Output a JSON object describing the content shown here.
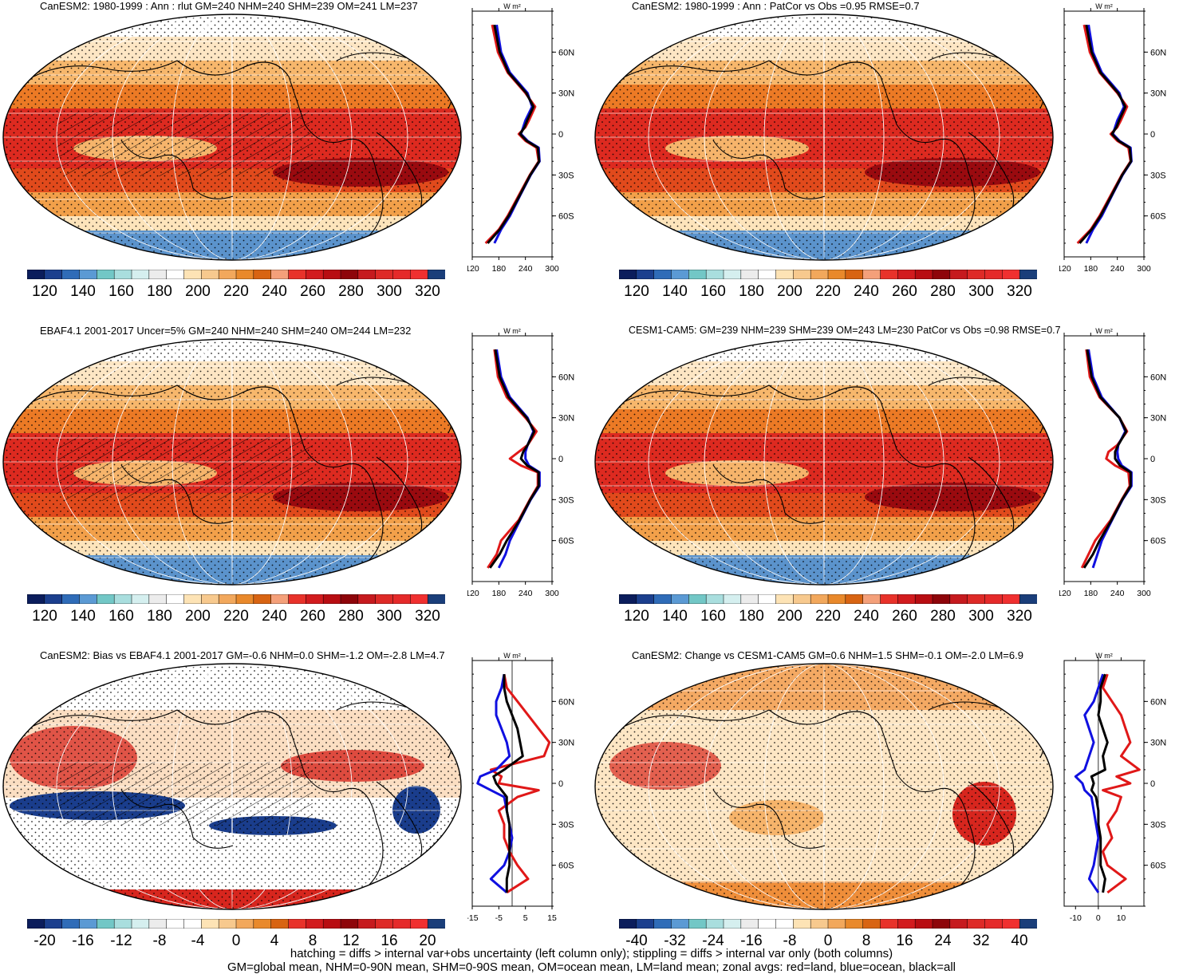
{
  "colors": {
    "abs_scale": [
      "#0b1d5c",
      "#1b3f8e",
      "#2f6cb8",
      "#5b9ad4",
      "#72c7c6",
      "#a9dede",
      "#d5efef",
      "#ececec",
      "#ffffff",
      "#fde3b5",
      "#f7c98e",
      "#f2a85c",
      "#e9892b",
      "#d86412",
      "#f4a07a",
      "#e8322a",
      "#d21b1e",
      "#b80d12",
      "#8e050a",
      "#c61a1e",
      "#de2a27",
      "#e52a2a",
      "#f03030",
      "#1a3e7a"
    ],
    "land": "#e01818",
    "ocean": "#1010e0",
    "all": "#000000"
  },
  "panels": [
    {
      "id": "p1",
      "title": "CanESM2: 1980-1999 : Ann : rlut GM=240 NHM=240 SHM=239 OM=241 LM=237",
      "profile_units": "W m²",
      "profile_xticks": [
        "120",
        "180",
        "240",
        "300"
      ],
      "profile_yticks": [
        "60N",
        "30N",
        "0",
        "30S",
        "60S"
      ],
      "colorbar_labels": [
        "120",
        "140",
        "160",
        "180",
        "200",
        "220",
        "240",
        "260",
        "280",
        "300",
        "320"
      ],
      "hatched": true
    },
    {
      "id": "p2",
      "title": "CanESM2: 1980-1999 : Ann : PatCor vs Obs =0.95 RMSE=0.7",
      "profile_units": "W m²",
      "profile_xticks": [
        "120",
        "180",
        "240",
        "300"
      ],
      "profile_yticks": [
        "60N",
        "30N",
        "0",
        "30S",
        "60S"
      ],
      "colorbar_labels": [
        "120",
        "140",
        "160",
        "180",
        "200",
        "220",
        "240",
        "260",
        "280",
        "300",
        "320"
      ],
      "hatched": false
    },
    {
      "id": "p3",
      "title": "EBAF4.1 2001-2017 Uncer=5% GM=240 NHM=240 SHM=240 OM=244 LM=232",
      "profile_units": "W m²",
      "profile_xticks": [
        "120",
        "180",
        "240",
        "300"
      ],
      "profile_yticks": [
        "60N",
        "30N",
        "0",
        "30S",
        "60S"
      ],
      "colorbar_labels": [
        "120",
        "140",
        "160",
        "180",
        "200",
        "220",
        "240",
        "260",
        "280",
        "300",
        "320"
      ],
      "hatched": true
    },
    {
      "id": "p4",
      "title": "CESM1-CAM5: GM=239 NHM=239 SHM=239 OM=243 LM=230 PatCor vs Obs =0.98 RMSE=0.7",
      "profile_units": "W m²",
      "profile_xticks": [
        "120",
        "180",
        "240",
        "300"
      ],
      "profile_yticks": [
        "60N",
        "30N",
        "0",
        "30S",
        "60S"
      ],
      "colorbar_labels": [
        "120",
        "140",
        "160",
        "180",
        "200",
        "220",
        "240",
        "260",
        "280",
        "300",
        "320"
      ],
      "hatched": false
    },
    {
      "id": "p5",
      "title": "CanESM2: Bias vs EBAF4.1 2001-2017 GM=-0.6 NHM=0.0 SHM=-1.2 OM=-2.8 LM=4.7",
      "profile_units": "W m²",
      "profile_xticks": [
        "-15",
        "-5",
        "5",
        "15"
      ],
      "profile_yticks": [
        "60N",
        "30N",
        "0",
        "30S",
        "60S"
      ],
      "colorbar_labels": [
        "-20",
        "-16",
        "-12",
        "-8",
        "-4",
        "0",
        "4",
        "8",
        "12",
        "16",
        "20"
      ],
      "hatched": true
    },
    {
      "id": "p6",
      "title": "CanESM2: Change vs CESM1-CAM5 GM=0.6 NHM=1.5 SHM=-0.1 OM=-2.0 LM=6.9",
      "profile_units": "W m²",
      "profile_xticks": [
        "-10",
        "0",
        "10"
      ],
      "profile_yticks": [
        "60N",
        "30N",
        "0",
        "30S",
        "60S"
      ],
      "colorbar_labels": [
        "-40",
        "-32",
        "-24",
        "-16",
        "-8",
        "0",
        "8",
        "16",
        "24",
        "32",
        "40"
      ],
      "hatched": false
    }
  ],
  "chart_data": [
    {
      "type": "line",
      "panel": "CanESM2 rlut zonal average",
      "y": [
        80,
        60,
        45,
        30,
        20,
        10,
        5,
        0,
        -5,
        -10,
        -20,
        -30,
        -45,
        -60,
        -70,
        -80
      ],
      "series": [
        {
          "name": "red=land",
          "values": [
            165,
            178,
            200,
            240,
            262,
            248,
            240,
            225,
            240,
            265,
            270,
            250,
            225,
            200,
            180,
            150
          ]
        },
        {
          "name": "blue=ocean",
          "values": [
            175,
            185,
            205,
            245,
            255,
            240,
            235,
            230,
            245,
            270,
            272,
            252,
            228,
            205,
            185,
            170
          ]
        },
        {
          "name": "black=all",
          "values": [
            170,
            182,
            202,
            242,
            258,
            244,
            238,
            228,
            243,
            268,
            271,
            251,
            227,
            202,
            182,
            155
          ]
        }
      ],
      "xlim": [
        120,
        300
      ],
      "ylim": [
        -90,
        90
      ]
    },
    {
      "type": "line",
      "panel": "CanESM2 PatCor zonal average",
      "y": [
        80,
        60,
        45,
        30,
        20,
        10,
        5,
        0,
        -5,
        -10,
        -20,
        -30,
        -45,
        -60,
        -70,
        -80
      ],
      "series": [
        {
          "name": "red=land",
          "values": [
            165,
            178,
            200,
            240,
            262,
            248,
            240,
            225,
            240,
            265,
            270,
            250,
            225,
            200,
            180,
            150
          ]
        },
        {
          "name": "blue=ocean",
          "values": [
            175,
            185,
            205,
            245,
            255,
            240,
            235,
            230,
            245,
            270,
            272,
            252,
            228,
            205,
            185,
            170
          ]
        },
        {
          "name": "black=all",
          "values": [
            170,
            182,
            202,
            242,
            258,
            244,
            238,
            228,
            243,
            268,
            271,
            251,
            227,
            202,
            182,
            155
          ]
        }
      ],
      "xlim": [
        120,
        300
      ],
      "ylim": [
        -90,
        90
      ]
    },
    {
      "type": "line",
      "panel": "EBAF4.1 zonal average",
      "y": [
        80,
        60,
        45,
        30,
        20,
        10,
        5,
        0,
        -5,
        -10,
        -20,
        -30,
        -45,
        -60,
        -70,
        -80
      ],
      "series": [
        {
          "name": "red=land",
          "values": [
            170,
            178,
            198,
            240,
            265,
            245,
            225,
            205,
            230,
            268,
            268,
            250,
            225,
            185,
            175,
            155
          ]
        },
        {
          "name": "blue=ocean",
          "values": [
            175,
            185,
            205,
            245,
            258,
            245,
            240,
            240,
            248,
            272,
            272,
            252,
            228,
            205,
            195,
            180
          ]
        },
        {
          "name": "black=all",
          "values": [
            172,
            182,
            202,
            243,
            260,
            245,
            235,
            230,
            244,
            270,
            270,
            251,
            227,
            198,
            182,
            160
          ]
        }
      ],
      "xlim": [
        120,
        300
      ],
      "ylim": [
        -90,
        90
      ]
    },
    {
      "type": "line",
      "panel": "CESM1-CAM5 zonal average",
      "y": [
        80,
        60,
        45,
        30,
        20,
        10,
        5,
        0,
        -5,
        -10,
        -20,
        -30,
        -45,
        -60,
        -70,
        -80
      ],
      "series": [
        {
          "name": "red=land",
          "values": [
            170,
            178,
            200,
            245,
            262,
            240,
            220,
            215,
            235,
            265,
            268,
            250,
            225,
            190,
            175,
            160
          ]
        },
        {
          "name": "blue=ocean",
          "values": [
            175,
            185,
            205,
            245,
            258,
            242,
            240,
            242,
            250,
            272,
            272,
            252,
            228,
            205,
            195,
            185
          ]
        },
        {
          "name": "black=all",
          "values": [
            172,
            182,
            202,
            245,
            260,
            242,
            235,
            235,
            246,
            270,
            270,
            251,
            227,
            200,
            185,
            165
          ]
        }
      ],
      "xlim": [
        120,
        300
      ],
      "ylim": [
        -90,
        90
      ]
    },
    {
      "type": "line",
      "panel": "CanESM2 bias zonal average",
      "y": [
        80,
        70,
        60,
        50,
        40,
        30,
        20,
        10,
        5,
        0,
        -5,
        -10,
        -20,
        -30,
        -40,
        -50,
        -60,
        -70,
        -80
      ],
      "series": [
        {
          "name": "red=land",
          "values": [
            -3,
            -2,
            2,
            6,
            10,
            14,
            12,
            -8,
            -4,
            -5,
            10,
            2,
            -5,
            -3,
            -3,
            -1,
            2,
            6,
            -2
          ]
        },
        {
          "name": "blue=ocean",
          "values": [
            -3,
            -4,
            -6,
            -6,
            -4,
            -2,
            -1,
            -6,
            -12,
            -13,
            -8,
            -3,
            -2,
            -1,
            0,
            -1,
            -3,
            -8,
            -2
          ]
        },
        {
          "name": "black=all",
          "values": [
            -3,
            -3,
            -2,
            0,
            2,
            3,
            4,
            -3,
            -7,
            -6,
            -4,
            -2,
            -2,
            -1,
            -1,
            -1,
            -1,
            -2,
            -2
          ]
        }
      ],
      "xlim": [
        -15,
        15
      ],
      "ylim": [
        -90,
        90
      ]
    },
    {
      "type": "line",
      "panel": "CanESM2 change vs CESM1-CAM5 zonal average",
      "y": [
        80,
        70,
        60,
        50,
        40,
        30,
        20,
        10,
        5,
        0,
        -5,
        -10,
        -20,
        -30,
        -40,
        -50,
        -60,
        -70,
        -80
      ],
      "series": [
        {
          "name": "red=land",
          "values": [
            4,
            2,
            6,
            10,
            12,
            14,
            10,
            18,
            8,
            14,
            2,
            10,
            8,
            4,
            6,
            2,
            4,
            12,
            4
          ]
        },
        {
          "name": "blue=ocean",
          "values": [
            2,
            0,
            -2,
            -6,
            -4,
            -2,
            -4,
            -6,
            -10,
            -7,
            -6,
            -3,
            -2,
            -1,
            0,
            -1,
            -2,
            -4,
            0
          ]
        },
        {
          "name": "black=all",
          "values": [
            3,
            1,
            1,
            0,
            2,
            4,
            2,
            3,
            -3,
            -2,
            -3,
            -1,
            0,
            0,
            1,
            1,
            1,
            3,
            2
          ]
        }
      ],
      "xlim": [
        -15,
        20
      ],
      "ylim": [
        -90,
        90
      ]
    }
  ],
  "footer": {
    "line1": "hatching = diffs > internal var+obs uncertainty (left column only); stippling = diffs > internal var only (both columns)",
    "line2": "GM=global mean, NHM=0-90N mean, SHM=0-90S mean, OM=ocean mean, LM=land mean; zonal avgs: red=land, blue=ocean, black=all"
  }
}
